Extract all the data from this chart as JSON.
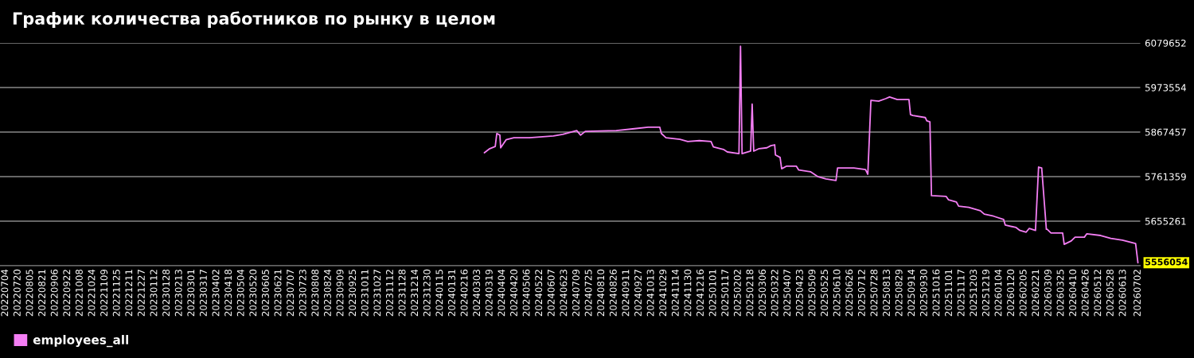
{
  "chart_data": {
    "type": "line",
    "title": "График количества работников по рынку в целом",
    "x": [
      "2024-03-12",
      "2024-03-19",
      "2024-03-26",
      "2024-03-28",
      "2024-04-01",
      "2024-04-02",
      "2024-04-09",
      "2024-04-19",
      "2024-05-09",
      "2024-06-09",
      "2024-06-21",
      "2024-07-09",
      "2024-07-14",
      "2024-07-20",
      "2024-08-29",
      "2024-09-19",
      "2024-10-09",
      "2024-10-24",
      "2024-10-26",
      "2024-11-01",
      "2024-11-19",
      "2024-11-29",
      "2024-12-14",
      "2024-12-29",
      "2025-01-01",
      "2025-01-14",
      "2025-01-19",
      "2025-02-03",
      "2025-02-05",
      "2025-02-07",
      "2025-02-18",
      "2025-02-20",
      "2025-02-22",
      "2025-03-01",
      "2025-03-11",
      "2025-03-16",
      "2025-03-21",
      "2025-03-22",
      "2025-03-28",
      "2025-03-30",
      "2025-04-05",
      "2025-04-18",
      "2025-04-21",
      "2025-05-06",
      "2025-05-11",
      "2025-05-16",
      "2025-05-26",
      "2025-06-08",
      "2025-06-10",
      "2025-07-01",
      "2025-07-16",
      "2025-07-19",
      "2025-07-23",
      "2025-08-02",
      "2025-08-11",
      "2025-08-16",
      "2025-08-26",
      "2025-09-10",
      "2025-09-12",
      "2025-09-15",
      "2025-10-01",
      "2025-10-03",
      "2025-10-07",
      "2025-10-09",
      "2025-10-28",
      "2025-10-31",
      "2025-11-10",
      "2025-11-13",
      "2025-11-26",
      "2025-12-11",
      "2025-12-16",
      "2025-12-28",
      "2026-01-10",
      "2026-01-12",
      "2026-01-26",
      "2026-01-31",
      "2026-02-08",
      "2026-02-12",
      "2026-02-20",
      "2026-02-24",
      "2026-02-28",
      "2026-03-06",
      "2026-03-07",
      "2026-03-12",
      "2026-03-27",
      "2026-03-29",
      "2026-04-07",
      "2026-04-12",
      "2026-04-24",
      "2026-04-27",
      "2026-05-15",
      "2026-05-28",
      "2026-06-12",
      "2026-06-29",
      "2026-07-02"
    ],
    "series": [
      {
        "name": "employees_all",
        "color": "#f47ef4",
        "values": [
          5818000,
          5828000,
          5833000,
          5864000,
          5860000,
          5830000,
          5849000,
          5854000,
          5854000,
          5858000,
          5862000,
          5871000,
          5860000,
          5869000,
          5871000,
          5875000,
          5879000,
          5879000,
          5864000,
          5854000,
          5850000,
          5845000,
          5847000,
          5845000,
          5832000,
          5826000,
          5820000,
          5816000,
          6072000,
          5816000,
          5822000,
          5934000,
          5822000,
          5828000,
          5830000,
          5835000,
          5837000,
          5813000,
          5807000,
          5780000,
          5786000,
          5786000,
          5777000,
          5773000,
          5767000,
          5761000,
          5756000,
          5752000,
          5782000,
          5782000,
          5778000,
          5767000,
          5943000,
          5941000,
          5947000,
          5951000,
          5945000,
          5945000,
          5909000,
          5907000,
          5902000,
          5894000,
          5892000,
          5716000,
          5714000,
          5706000,
          5701000,
          5691000,
          5688000,
          5680000,
          5672000,
          5667000,
          5659000,
          5646000,
          5640000,
          5633000,
          5629000,
          5638000,
          5633000,
          5784000,
          5782000,
          5636000,
          5636000,
          5627000,
          5627000,
          5600000,
          5608000,
          5617000,
          5617000,
          5625000,
          5621000,
          5614000,
          5610000,
          5602000,
          5556054
        ]
      }
    ],
    "xlim": [
      "2022-06-27",
      "2026-07-05"
    ],
    "ylim": [
      5549200,
      6079652
    ],
    "yticks": [
      5655261,
      5761359,
      5867457,
      5973554,
      6079652
    ],
    "xticks": [
      {
        "value": "2022-07-04",
        "label": "20220704"
      },
      {
        "value": "2022-07-20",
        "label": "20220720"
      },
      {
        "value": "2022-08-05",
        "label": "20220805"
      },
      {
        "value": "2022-08-21",
        "label": "20220821"
      },
      {
        "value": "2022-09-06",
        "label": "20220906"
      },
      {
        "value": "2022-09-22",
        "label": "20220922"
      },
      {
        "value": "2022-10-08",
        "label": "20221008"
      },
      {
        "value": "2022-10-24",
        "label": "20221024"
      },
      {
        "value": "2022-11-09",
        "label": "20221109"
      },
      {
        "value": "2022-11-25",
        "label": "20221125"
      },
      {
        "value": "2022-12-11",
        "label": "20221211"
      },
      {
        "value": "2022-12-27",
        "label": "20221227"
      },
      {
        "value": "2023-01-12",
        "label": "20230112"
      },
      {
        "value": "2023-01-28",
        "label": "20230128"
      },
      {
        "value": "2023-02-13",
        "label": "20230213"
      },
      {
        "value": "2023-03-01",
        "label": "20230301"
      },
      {
        "value": "2023-03-17",
        "label": "20230317"
      },
      {
        "value": "2023-04-02",
        "label": "20230402"
      },
      {
        "value": "2023-04-18",
        "label": "20230418"
      },
      {
        "value": "2023-05-04",
        "label": "20230504"
      },
      {
        "value": "2023-05-20",
        "label": "20230520"
      },
      {
        "value": "2023-06-05",
        "label": "20230605"
      },
      {
        "value": "2023-06-21",
        "label": "20230621"
      },
      {
        "value": "2023-07-07",
        "label": "20230707"
      },
      {
        "value": "2023-07-23",
        "label": "20230723"
      },
      {
        "value": "2023-08-08",
        "label": "20230808"
      },
      {
        "value": "2023-08-24",
        "label": "20230824"
      },
      {
        "value": "2023-09-09",
        "label": "20230909"
      },
      {
        "value": "2023-09-25",
        "label": "20230925"
      },
      {
        "value": "2023-10-11",
        "label": "20231011"
      },
      {
        "value": "2023-10-27",
        "label": "20231027"
      },
      {
        "value": "2023-11-12",
        "label": "20231112"
      },
      {
        "value": "2023-11-28",
        "label": "20231128"
      },
      {
        "value": "2023-12-14",
        "label": "20231214"
      },
      {
        "value": "2023-12-30",
        "label": "20231230"
      },
      {
        "value": "2024-01-15",
        "label": "20240115"
      },
      {
        "value": "2024-01-31",
        "label": "20240131"
      },
      {
        "value": "2024-02-16",
        "label": "20240216"
      },
      {
        "value": "2024-03-03",
        "label": "20240303"
      },
      {
        "value": "2024-03-19",
        "label": "20240319"
      },
      {
        "value": "2024-04-04",
        "label": "20240404"
      },
      {
        "value": "2024-04-20",
        "label": "20240420"
      },
      {
        "value": "2024-05-06",
        "label": "20240506"
      },
      {
        "value": "2024-05-22",
        "label": "20240522"
      },
      {
        "value": "2024-06-07",
        "label": "20240607"
      },
      {
        "value": "2024-06-23",
        "label": "20240623"
      },
      {
        "value": "2024-07-09",
        "label": "20240709"
      },
      {
        "value": "2024-07-25",
        "label": "20240725"
      },
      {
        "value": "2024-08-10",
        "label": "20240810"
      },
      {
        "value": "2024-08-26",
        "label": "20240826"
      },
      {
        "value": "2024-09-11",
        "label": "20240911"
      },
      {
        "value": "2024-09-27",
        "label": "20240927"
      },
      {
        "value": "2024-10-13",
        "label": "20241013"
      },
      {
        "value": "2024-10-29",
        "label": "20241029"
      },
      {
        "value": "2024-11-14",
        "label": "20241114"
      },
      {
        "value": "2024-11-30",
        "label": "20241130"
      },
      {
        "value": "2024-12-16",
        "label": "20241216"
      },
      {
        "value": "2025-01-01",
        "label": "20250101"
      },
      {
        "value": "2025-01-17",
        "label": "20250117"
      },
      {
        "value": "2025-02-02",
        "label": "20250202"
      },
      {
        "value": "2025-02-18",
        "label": "20250218"
      },
      {
        "value": "2025-03-06",
        "label": "20250306"
      },
      {
        "value": "2025-03-22",
        "label": "20250322"
      },
      {
        "value": "2025-04-07",
        "label": "20250407"
      },
      {
        "value": "2025-04-23",
        "label": "20250423"
      },
      {
        "value": "2025-05-09",
        "label": "20250509"
      },
      {
        "value": "2025-05-25",
        "label": "20250525"
      },
      {
        "value": "2025-06-10",
        "label": "20250610"
      },
      {
        "value": "2025-06-26",
        "label": "20250626"
      },
      {
        "value": "2025-07-12",
        "label": "20250712"
      },
      {
        "value": "2025-07-28",
        "label": "20250728"
      },
      {
        "value": "2025-08-13",
        "label": "20250813"
      },
      {
        "value": "2025-08-29",
        "label": "20250829"
      },
      {
        "value": "2025-09-14",
        "label": "20250914"
      },
      {
        "value": "2025-09-30",
        "label": "20250930"
      },
      {
        "value": "2025-10-16",
        "label": "20251016"
      },
      {
        "value": "2025-11-01",
        "label": "20251101"
      },
      {
        "value": "2025-11-17",
        "label": "20251117"
      },
      {
        "value": "2025-12-03",
        "label": "20251203"
      },
      {
        "value": "2025-12-19",
        "label": "20251219"
      },
      {
        "value": "2026-01-04",
        "label": "20260104"
      },
      {
        "value": "2026-01-20",
        "label": "20260120"
      },
      {
        "value": "2026-02-05",
        "label": "20260205"
      },
      {
        "value": "2026-02-21",
        "label": "20260221"
      },
      {
        "value": "2026-03-09",
        "label": "20260309"
      },
      {
        "value": "2026-03-25",
        "label": "20260325"
      },
      {
        "value": "2026-04-10",
        "label": "20260410"
      },
      {
        "value": "2026-04-26",
        "label": "20260426"
      },
      {
        "value": "2026-05-12",
        "label": "20260512"
      },
      {
        "value": "2026-05-28",
        "label": "20260528"
      },
      {
        "value": "2026-06-13",
        "label": "20260613"
      },
      {
        "value": "2026-07-02",
        "label": "20260702"
      }
    ],
    "annotations": [
      {
        "text": "5556054",
        "x": "2026-07-02",
        "y": 5556054
      }
    ],
    "grid": "y",
    "legend": "bottom left",
    "marker": "none",
    "line_style": "solid"
  }
}
